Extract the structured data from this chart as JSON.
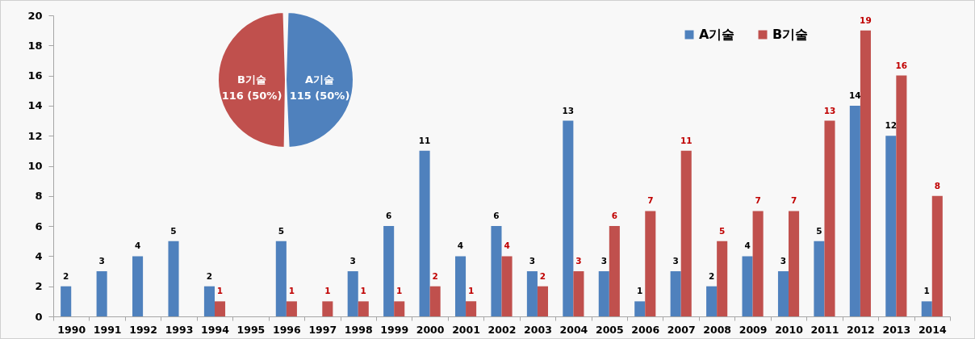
{
  "chart_data": [
    {
      "type": "bar",
      "categories": [
        "1990",
        "1991",
        "1992",
        "1993",
        "1994",
        "1995",
        "1996",
        "1997",
        "1998",
        "1999",
        "2000",
        "2001",
        "2002",
        "2003",
        "2004",
        "2005",
        "2006",
        "2007",
        "2008",
        "2009",
        "2010",
        "2011",
        "2012",
        "2013",
        "2014"
      ],
      "series": [
        {
          "name": "A기술",
          "color": "#4f81bd",
          "values": [
            2,
            3,
            4,
            5,
            2,
            null,
            5,
            null,
            3,
            6,
            11,
            4,
            6,
            3,
            13,
            3,
            1,
            3,
            2,
            4,
            3,
            5,
            14,
            12,
            1
          ]
        },
        {
          "name": "B기술",
          "color": "#c0504d",
          "values": [
            null,
            null,
            null,
            null,
            1,
            null,
            1,
            1,
            1,
            1,
            2,
            1,
            4,
            2,
            3,
            6,
            7,
            11,
            5,
            7,
            7,
            13,
            19,
            16,
            8
          ]
        }
      ],
      "ylim": [
        0,
        20
      ],
      "yticks": [
        0,
        2,
        4,
        6,
        8,
        10,
        12,
        14,
        16,
        18,
        20
      ],
      "legend": "top right",
      "data_labels": true
    },
    {
      "type": "pie",
      "categories": [
        "A기술",
        "B기술"
      ],
      "values": [
        115,
        116
      ],
      "colors": [
        "#4f81bd",
        "#c0504d"
      ],
      "value_labels": [
        "115 (50%)",
        "116 (50%)"
      ]
    }
  ]
}
